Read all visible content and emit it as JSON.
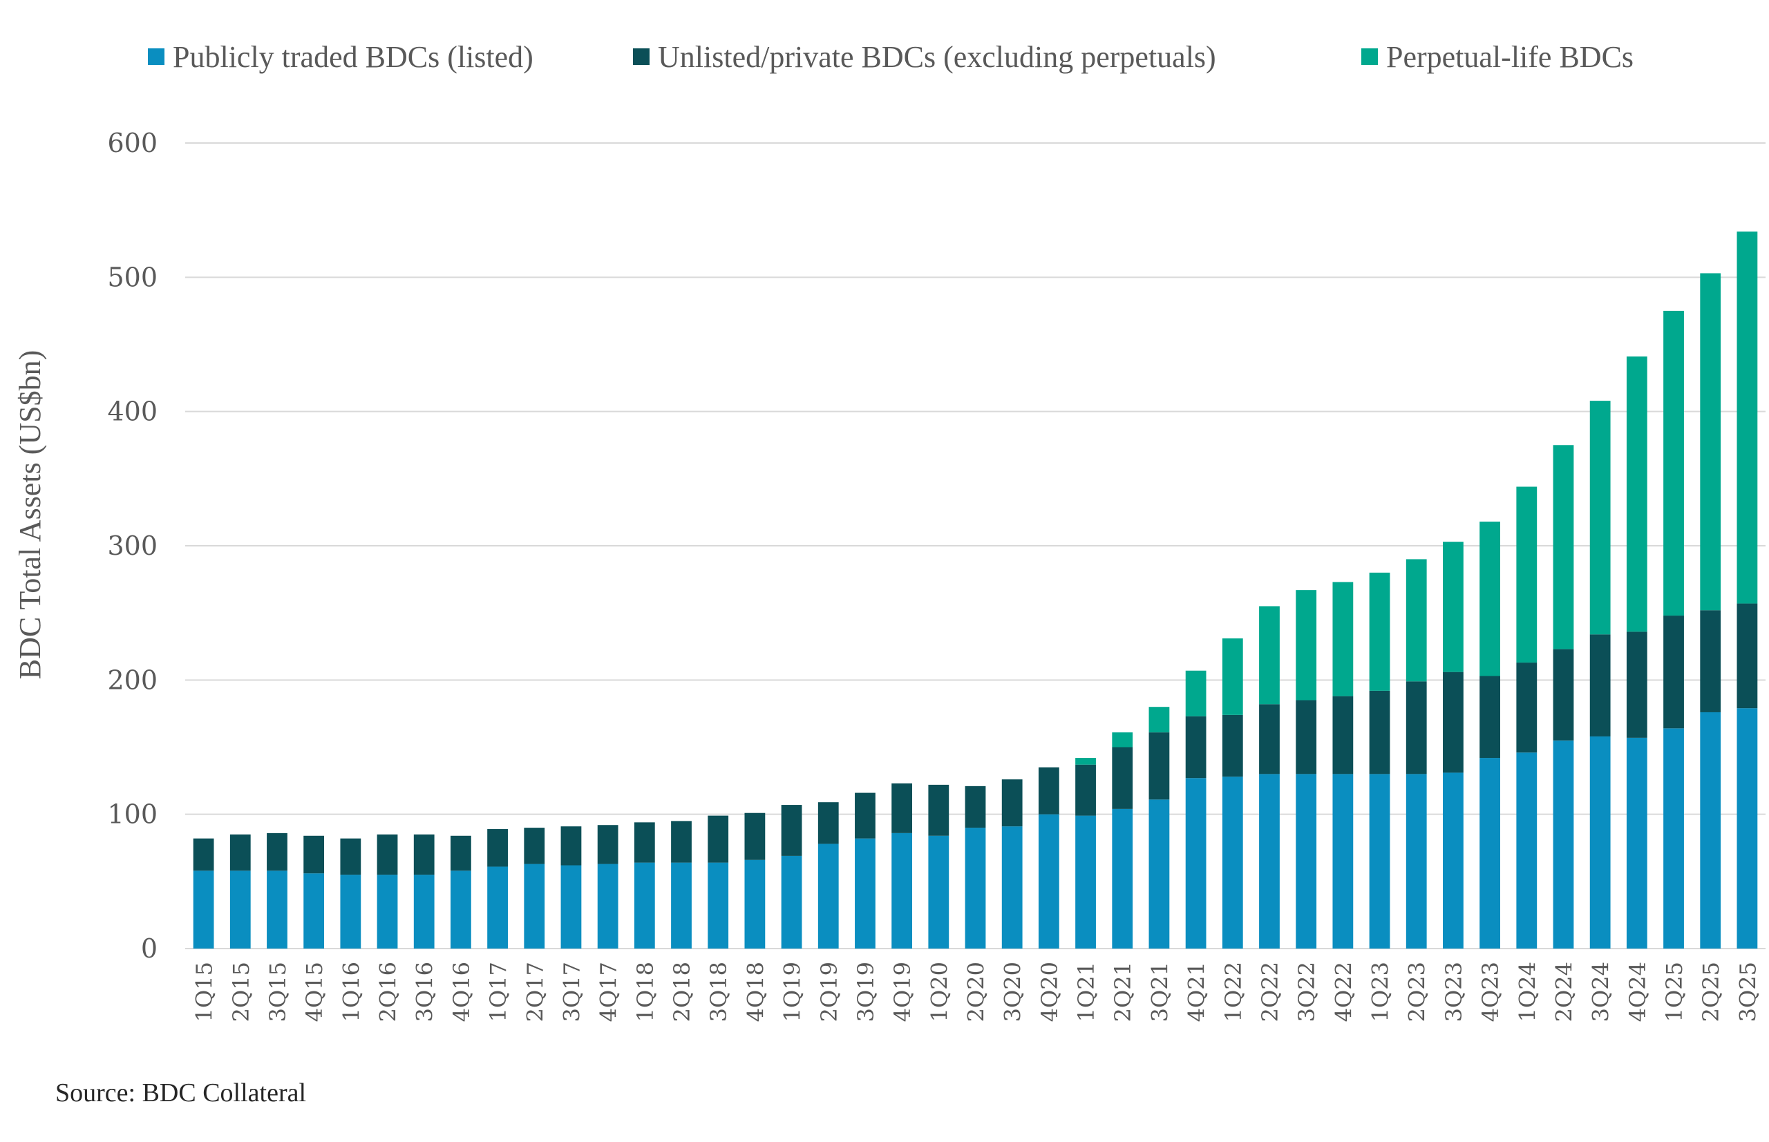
{
  "chart_data": {
    "type": "bar",
    "stacked": true,
    "title": "",
    "xlabel": "",
    "ylabel": "BDC Total Assets (US$bn)",
    "ylim": [
      0,
      600
    ],
    "yticks": [
      0,
      100,
      200,
      300,
      400,
      500,
      600
    ],
    "grid": true,
    "legend_position": "top",
    "categories": [
      "1Q15",
      "2Q15",
      "3Q15",
      "4Q15",
      "1Q16",
      "2Q16",
      "3Q16",
      "4Q16",
      "1Q17",
      "2Q17",
      "3Q17",
      "4Q17",
      "1Q18",
      "2Q18",
      "3Q18",
      "4Q18",
      "1Q19",
      "2Q19",
      "3Q19",
      "4Q19",
      "1Q20",
      "2Q20",
      "3Q20",
      "4Q20",
      "1Q21",
      "2Q21",
      "3Q21",
      "4Q21",
      "1Q22",
      "2Q22",
      "3Q22",
      "4Q22",
      "1Q23",
      "2Q23",
      "3Q23",
      "4Q23",
      "1Q24",
      "2Q24",
      "3Q24",
      "4Q24",
      "1Q25",
      "2Q25",
      "3Q25"
    ],
    "series": [
      {
        "name": "Publicly traded BDCs (listed)",
        "color": "#0A8EC0",
        "values": [
          58,
          58,
          58,
          56,
          55,
          55,
          55,
          58,
          61,
          63,
          62,
          63,
          64,
          64,
          64,
          66,
          69,
          78,
          82,
          86,
          84,
          90,
          91,
          100,
          99,
          104,
          111,
          127,
          128,
          130,
          130,
          130,
          130,
          130,
          131,
          142,
          146,
          155,
          158,
          157,
          164,
          176,
          179
        ]
      },
      {
        "name": "Unlisted/private BDCs (excluding perpetuals)",
        "color": "#0B4F57",
        "values": [
          24,
          27,
          28,
          28,
          27,
          30,
          30,
          26,
          28,
          27,
          29,
          29,
          30,
          31,
          35,
          35,
          38,
          31,
          34,
          37,
          38,
          31,
          35,
          35,
          38,
          46,
          50,
          46,
          46,
          52,
          55,
          58,
          62,
          69,
          75,
          61,
          67,
          68,
          76,
          79,
          84,
          76,
          78
        ]
      },
      {
        "name": "Perpetual-life BDCs",
        "color": "#00A88E",
        "values": [
          0,
          0,
          0,
          0,
          0,
          0,
          0,
          0,
          0,
          0,
          0,
          0,
          0,
          0,
          0,
          0,
          0,
          0,
          0,
          0,
          0,
          0,
          0,
          0,
          5,
          11,
          19,
          34,
          57,
          73,
          82,
          85,
          88,
          91,
          97,
          115,
          131,
          152,
          174,
          205,
          227,
          251,
          277
        ]
      }
    ]
  },
  "legend": [
    {
      "label": "Publicly traded BDCs (listed)",
      "color": "#0A8EC0"
    },
    {
      "label": "Unlisted/private BDCs (excluding perpetuals)",
      "color": "#0B4F57"
    },
    {
      "label": "Perpetual-life BDCs",
      "color": "#00A88E"
    }
  ],
  "source": "Source: BDC Collateral"
}
